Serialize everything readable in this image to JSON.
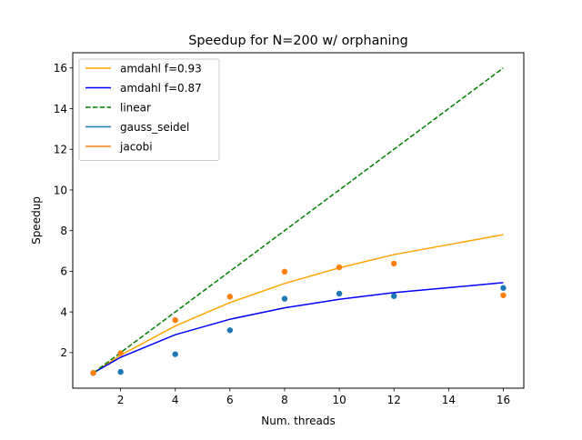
{
  "chart_data": {
    "type": "line",
    "title": "Speedup for N=200 w/ orphaning",
    "xlabel": "Num. threads",
    "ylabel": "Speedup",
    "xlim": [
      0.25,
      16.75
    ],
    "ylim": [
      0.25,
      16.75
    ],
    "xticks": [
      2,
      4,
      6,
      8,
      10,
      12,
      14,
      16
    ],
    "yticks": [
      2,
      4,
      6,
      8,
      10,
      12,
      14,
      16
    ],
    "grid": false,
    "legend_position": "top-left",
    "lines": [
      {
        "name": "amdahl f=0.93",
        "color": "#ffa500",
        "dash": "solid",
        "x": [
          1,
          2,
          4,
          6,
          8,
          10,
          12,
          16
        ],
        "y": [
          1.0,
          1.87,
          3.31,
          4.46,
          5.4,
          6.17,
          6.82,
          7.8
        ]
      },
      {
        "name": "amdahl f=0.87",
        "color": "#0000ff",
        "dash": "solid",
        "x": [
          1,
          2,
          4,
          6,
          8,
          10,
          12,
          16
        ],
        "y": [
          1.0,
          1.77,
          2.88,
          3.64,
          4.2,
          4.62,
          4.95,
          5.44
        ]
      },
      {
        "name": "linear",
        "color": "#008000",
        "dash": "dashed",
        "x": [
          1,
          16
        ],
        "y": [
          1,
          16
        ]
      }
    ],
    "scatter": [
      {
        "name": "gauss_seidel",
        "color": "#1f77b4",
        "x": [
          1,
          2,
          4,
          6,
          8,
          10,
          12,
          16
        ],
        "y": [
          1.0,
          1.05,
          1.92,
          3.1,
          4.65,
          4.9,
          4.78,
          5.18
        ]
      },
      {
        "name": "jacobi",
        "color": "#ff7f0e",
        "x": [
          1,
          2,
          4,
          6,
          8,
          10,
          12,
          16
        ],
        "y": [
          1.0,
          1.97,
          3.6,
          4.75,
          5.98,
          6.2,
          6.38,
          4.82
        ]
      }
    ]
  }
}
